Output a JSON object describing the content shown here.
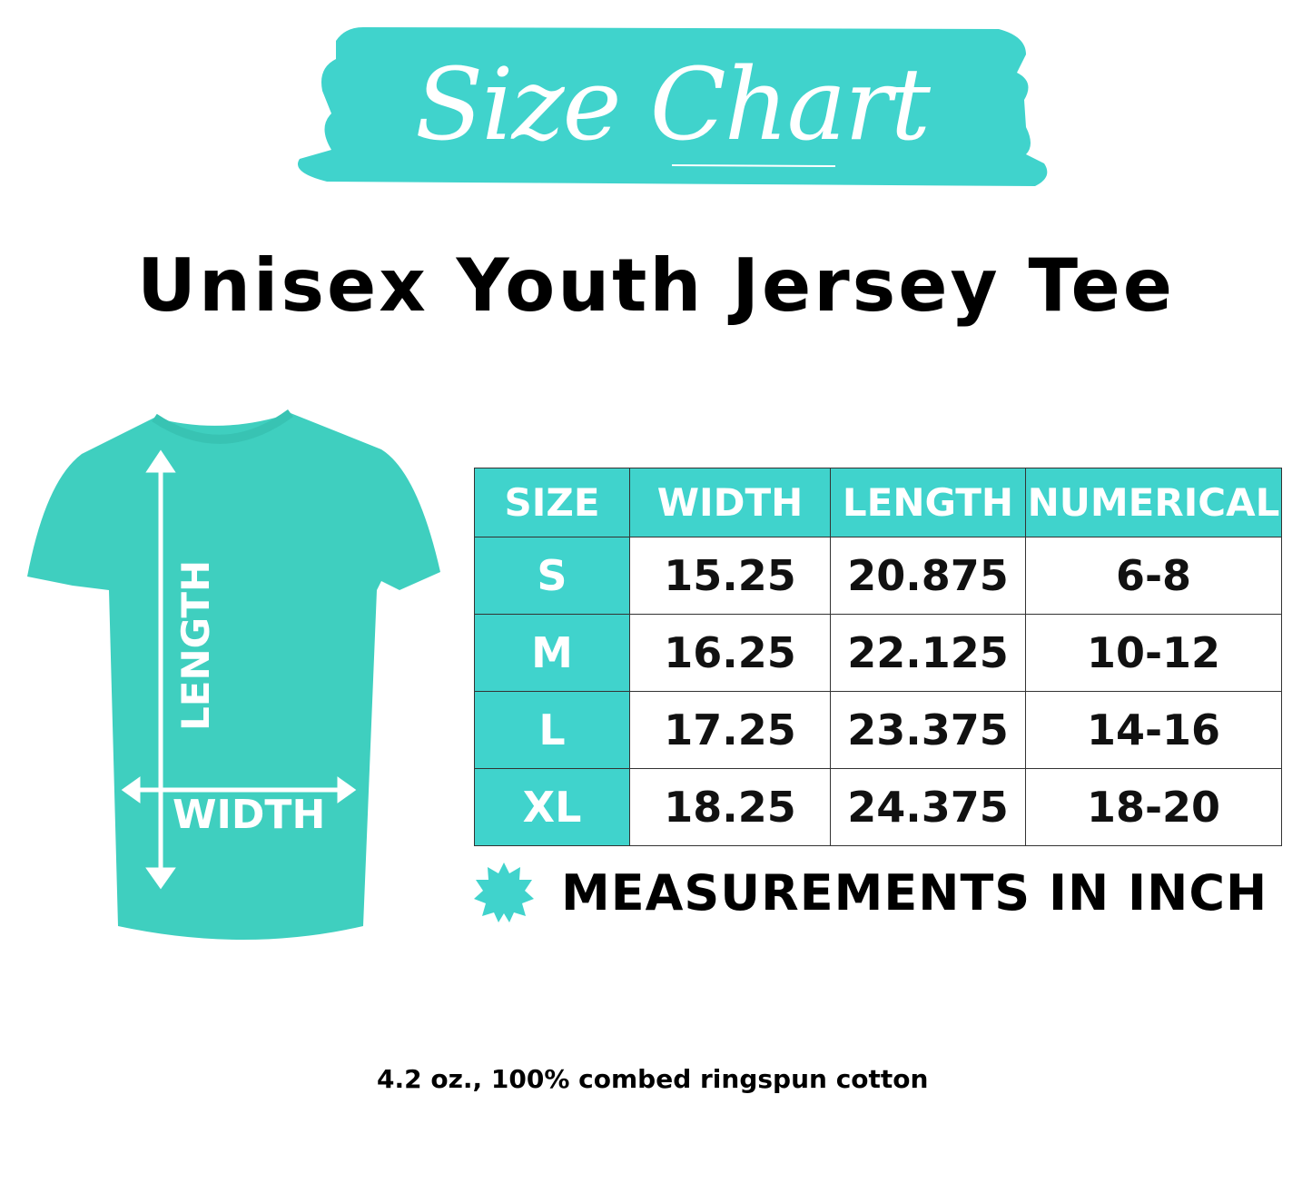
{
  "colors": {
    "accent": "#40d3cc",
    "shirt": "#3fcfbf"
  },
  "banner": {
    "title": "Size Chart"
  },
  "title": "Unisex Youth Jersey Tee",
  "shirt": {
    "length_label": "LENGTH",
    "width_label": "WIDTH"
  },
  "table": {
    "headers": [
      "SIZE",
      "WIDTH",
      "LENGTH",
      "NUMERICAL"
    ],
    "rows": [
      [
        "S",
        "15.25",
        "20.875",
        "6-8"
      ],
      [
        "M",
        "16.25",
        "22.125",
        "10-12"
      ],
      [
        "L",
        "17.25",
        "23.375",
        "14-16"
      ],
      [
        "XL",
        "18.25",
        "24.375",
        "18-20"
      ]
    ]
  },
  "note": {
    "icon": "starburst-icon",
    "text": "MEASUREMENTS IN INCH"
  },
  "footer": "4.2 oz., 100% combed ringspun cotton"
}
